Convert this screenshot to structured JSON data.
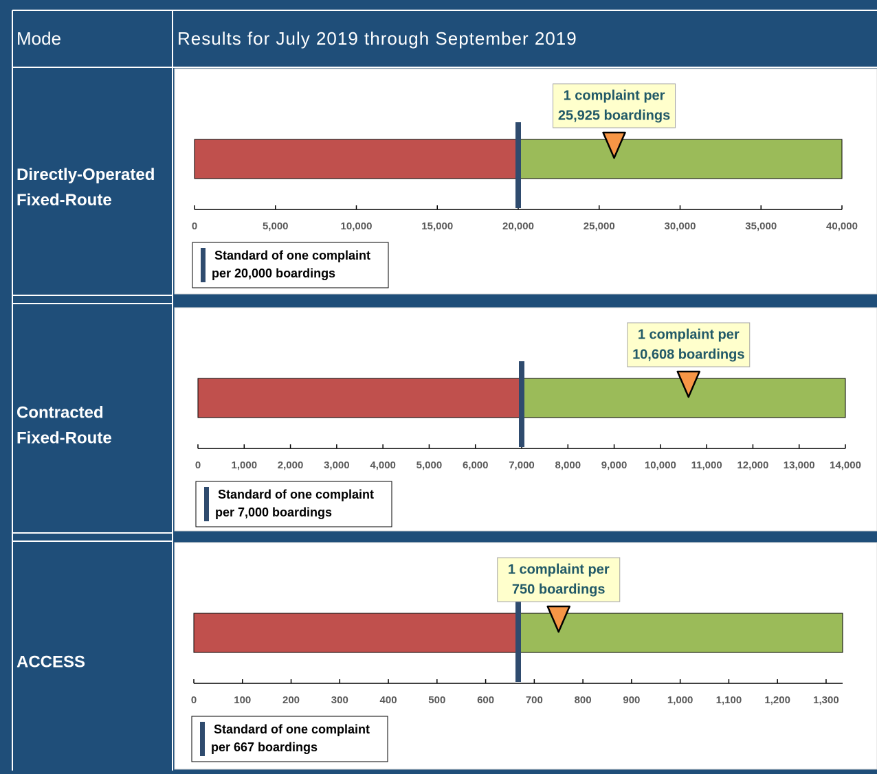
{
  "header": {
    "mode": "Mode",
    "results": "Results for July 2019 through September 2019"
  },
  "chart_data": [
    {
      "type": "bullet",
      "mode": [
        "Directly-Operated",
        "Fixed-Route"
      ],
      "xlim": [
        0,
        40000
      ],
      "xticks": [
        0,
        {
          "value": 5000,
          "label": "5,000"
        },
        {
          "value": 10000,
          "label": "10,000"
        },
        {
          "value": 15000,
          "label": "15,000"
        },
        {
          "value": 20000,
          "label": "20,000"
        },
        {
          "value": 25000,
          "label": "25,000"
        },
        {
          "value": 30000,
          "label": "30,000"
        },
        {
          "value": 35000,
          "label": "35,000"
        },
        {
          "value": 40000,
          "label": "40,000"
        }
      ],
      "standard": 20000,
      "value": 25925,
      "annotation": [
        "1 complaint per",
        "25,925 boardings"
      ],
      "legend": [
        "Standard of one complaint",
        "per 20,000 boardings"
      ],
      "below_color": "#c0504d",
      "above_color": "#9bbb59",
      "standard_color": "#2f4b6e",
      "marker_color": "#f79646"
    },
    {
      "type": "bullet",
      "mode": [
        "Contracted",
        "Fixed-Route"
      ],
      "xlim": [
        0,
        14000
      ],
      "xticks": [
        0,
        {
          "value": 1000,
          "label": "1,000"
        },
        {
          "value": 2000,
          "label": "2,000"
        },
        {
          "value": 3000,
          "label": "3,000"
        },
        {
          "value": 4000,
          "label": "4,000"
        },
        {
          "value": 5000,
          "label": "5,000"
        },
        {
          "value": 6000,
          "label": "6,000"
        },
        {
          "value": 7000,
          "label": "7,000"
        },
        {
          "value": 8000,
          "label": "8,000"
        },
        {
          "value": 9000,
          "label": "9,000"
        },
        {
          "value": 10000,
          "label": "10,000"
        },
        {
          "value": 11000,
          "label": "11,000"
        },
        {
          "value": 12000,
          "label": "12,000"
        },
        {
          "value": 13000,
          "label": "13,000"
        },
        {
          "value": 14000,
          "label": "14,000"
        }
      ],
      "standard": 7000,
      "value": 10608,
      "annotation": [
        "1 complaint per",
        "10,608 boardings"
      ],
      "legend": [
        "Standard of one complaint",
        "per 7,000 boardings"
      ],
      "below_color": "#c0504d",
      "above_color": "#9bbb59",
      "standard_color": "#2f4b6e",
      "marker_color": "#f79646"
    },
    {
      "type": "bullet",
      "mode": [
        "ACCESS"
      ],
      "xlim": [
        0,
        1334
      ],
      "xticks": [
        0,
        100,
        200,
        300,
        400,
        500,
        600,
        700,
        800,
        900,
        {
          "value": 1000,
          "label": "1,000"
        },
        {
          "value": 1100,
          "label": "1,100"
        },
        {
          "value": 1200,
          "label": "1,200"
        },
        {
          "value": 1300,
          "label": "1,300"
        }
      ],
      "standard": 667,
      "value": 750,
      "annotation": [
        "1 complaint per",
        "750 boardings"
      ],
      "legend": [
        "Standard of one complaint",
        "per 667 boardings"
      ],
      "below_color": "#c0504d",
      "above_color": "#9bbb59",
      "standard_color": "#2f4b6e",
      "marker_color": "#f79646"
    }
  ]
}
